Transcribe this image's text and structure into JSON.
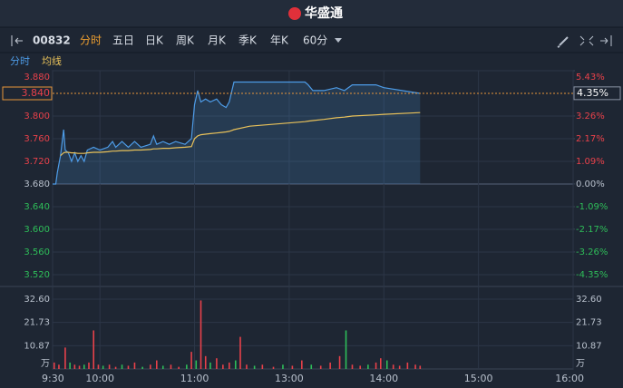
{
  "header": {
    "title": "华盛通"
  },
  "toolbar": {
    "code": "00832",
    "tabs": [
      "分时",
      "五日",
      "日K",
      "周K",
      "月K",
      "季K",
      "年K",
      "60分"
    ],
    "active_tab": 0
  },
  "chart_data": [
    {
      "type": "line",
      "base_price": 3.68,
      "last_price": {
        "value": 3.84,
        "label": "3.840"
      },
      "last_change": {
        "value": 4.35,
        "label": "4.35%"
      },
      "xlim": [
        0,
        330
      ],
      "x": [
        0,
        2,
        3,
        5,
        7,
        8,
        10,
        12,
        14,
        16,
        18,
        20,
        22,
        26,
        30,
        35,
        38,
        40,
        44,
        48,
        52,
        56,
        62,
        64,
        66,
        70,
        74,
        78,
        84,
        88,
        90,
        92,
        94,
        97,
        100,
        104,
        107,
        110,
        112,
        115,
        125,
        160,
        162,
        165,
        172,
        180,
        185,
        190,
        205,
        210,
        233
      ],
      "series": [
        {
          "name": "分时",
          "color": "#4d9be6",
          "values": [
            3.68,
            3.68,
            3.7,
            3.73,
            3.776,
            3.74,
            3.735,
            3.72,
            3.735,
            3.72,
            3.73,
            3.72,
            3.74,
            3.745,
            3.74,
            3.745,
            3.755,
            3.745,
            3.755,
            3.745,
            3.755,
            3.745,
            3.75,
            3.765,
            3.75,
            3.755,
            3.75,
            3.755,
            3.75,
            3.76,
            3.82,
            3.845,
            3.825,
            3.83,
            3.825,
            3.83,
            3.82,
            3.815,
            3.825,
            3.86,
            3.86,
            3.86,
            3.855,
            3.845,
            3.845,
            3.85,
            3.845,
            3.855,
            3.855,
            3.85,
            3.84
          ]
        },
        {
          "name": "均线",
          "color": "#e8c15a",
          "values": [
            null,
            null,
            null,
            3.73,
            3.735,
            3.736,
            3.736,
            3.735,
            3.735,
            3.734,
            3.734,
            3.734,
            3.735,
            3.736,
            3.736,
            3.737,
            3.738,
            3.738,
            3.739,
            3.739,
            3.74,
            3.74,
            3.741,
            3.742,
            3.742,
            3.743,
            3.743,
            3.744,
            3.745,
            3.746,
            3.76,
            3.765,
            3.767,
            3.768,
            3.769,
            3.77,
            3.771,
            3.772,
            3.773,
            3.776,
            3.782,
            3.79,
            3.791,
            3.792,
            3.794,
            3.797,
            3.798,
            3.8,
            3.802,
            3.803,
            3.806
          ]
        }
      ],
      "ylim": [
        3.52,
        3.88
      ],
      "yticks": [
        {
          "value": 3.88,
          "label": "3.880"
        },
        {
          "value": 3.8,
          "label": "3.800"
        },
        {
          "value": 3.76,
          "label": "3.760"
        },
        {
          "value": 3.72,
          "label": "3.720"
        },
        {
          "value": 3.68,
          "label": "3.680"
        },
        {
          "value": 3.64,
          "label": "3.640"
        },
        {
          "value": 3.6,
          "label": "3.600"
        },
        {
          "value": 3.56,
          "label": "3.560"
        },
        {
          "value": 3.52,
          "label": "3.520"
        }
      ],
      "y2lim": [
        -4.35,
        5.43
      ],
      "y2ticks": [
        {
          "value": 5.43,
          "label": "5.43%"
        },
        {
          "value": 3.26,
          "label": "3.26%"
        },
        {
          "value": 2.17,
          "label": "2.17%"
        },
        {
          "value": 1.09,
          "label": "1.09%"
        },
        {
          "value": 0,
          "label": "0.00%"
        },
        {
          "value": -1.09,
          "label": "-1.09%"
        },
        {
          "value": -2.17,
          "label": "-2.17%"
        },
        {
          "value": -3.26,
          "label": "-3.26%"
        },
        {
          "value": -4.35,
          "label": "-4.35%"
        }
      ]
    },
    {
      "type": "bar",
      "y_unit": "万",
      "xlim": [
        0,
        330
      ],
      "xticks": [
        {
          "value": 0,
          "label": "9:30"
        },
        {
          "value": 30,
          "label": "10:00"
        },
        {
          "value": 90,
          "label": "11:00"
        },
        {
          "value": 150,
          "label": "13:00"
        },
        {
          "value": 210,
          "label": "14:00"
        },
        {
          "value": 270,
          "label": "15:00"
        },
        {
          "value": 330,
          "label": "16:00"
        }
      ],
      "x": [
        1,
        4,
        8,
        11,
        14,
        17,
        20,
        23,
        26,
        29,
        32,
        36,
        40,
        44,
        48,
        52,
        57,
        62,
        66,
        70,
        75,
        80,
        85,
        88,
        91,
        94,
        97,
        100,
        104,
        108,
        112,
        116,
        119,
        123,
        128,
        133,
        140,
        146,
        152,
        158,
        164,
        170,
        176,
        182,
        186,
        190,
        195,
        200,
        205,
        208,
        212,
        216,
        220,
        225,
        230,
        233
      ],
      "values": [
        3,
        2,
        10,
        3,
        2,
        1.5,
        2,
        3,
        18,
        2,
        1.5,
        2,
        1,
        2,
        1.5,
        3,
        1,
        2,
        4,
        1.5,
        2,
        1,
        2,
        8,
        4,
        32,
        6,
        3,
        5,
        2,
        3,
        4,
        15,
        2,
        1.5,
        2,
        1,
        2,
        1.5,
        4,
        2,
        1.5,
        3,
        6,
        18,
        2,
        1.5,
        2,
        3,
        5,
        4,
        2,
        1.5,
        3,
        2,
        1.5
      ],
      "colors": [
        "#e8414a",
        "#e8414a",
        "#e8414a",
        "#2ebd59",
        "#e8414a",
        "#e8414a",
        "#2ebd59",
        "#e8414a",
        "#e8414a",
        "#e8414a",
        "#2ebd59",
        "#e8414a",
        "#e8414a",
        "#2ebd59",
        "#e8414a",
        "#e8414a",
        "#2ebd59",
        "#e8414a",
        "#e8414a",
        "#2ebd59",
        "#e8414a",
        "#e8414a",
        "#2ebd59",
        "#e8414a",
        "#2ebd59",
        "#e8414a",
        "#e8414a",
        "#2ebd59",
        "#e8414a",
        "#e8414a",
        "#e8414a",
        "#2ebd59",
        "#e8414a",
        "#e8414a",
        "#2ebd59",
        "#e8414a",
        "#e8414a",
        "#2ebd59",
        "#e8414a",
        "#e8414a",
        "#2ebd59",
        "#e8414a",
        "#e8414a",
        "#e8414a",
        "#2ebd59",
        "#e8414a",
        "#e8414a",
        "#2ebd59",
        "#e8414a",
        "#e8414a",
        "#2ebd59",
        "#e8414a",
        "#e8414a",
        "#e8414a",
        "#e8414a",
        "#e8414a"
      ],
      "ylim": [
        0,
        32.6
      ],
      "yticks": [
        {
          "value": 10.87,
          "label": "10.87"
        },
        {
          "value": 21.73,
          "label": "21.73"
        },
        {
          "value": 32.6,
          "label": "32.60"
        }
      ]
    }
  ]
}
